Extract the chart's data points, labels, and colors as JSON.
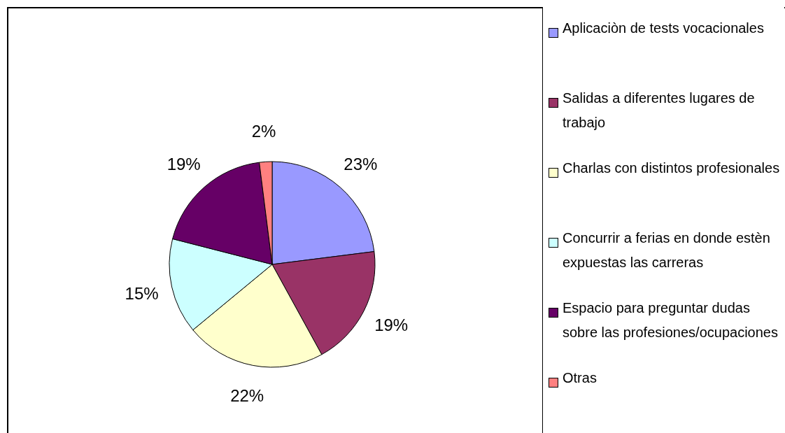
{
  "chart_data": {
    "type": "pie",
    "categories": [
      "Aplicaciòn de tests vocacionales",
      "Salidas a diferentes lugares de trabajo",
      "Charlas con distintos profesionales",
      "Concurrir a ferias en donde estèn expuestas las carreras",
      "Espacio para preguntar dudas sobre las profesiones/ocupaciones",
      "Otras"
    ],
    "values": [
      23,
      19,
      22,
      15,
      19,
      2
    ],
    "colors": [
      "#9999ff",
      "#993366",
      "#ffffcc",
      "#ccffff",
      "#660066",
      "#ff8080"
    ],
    "value_labels": [
      "23%",
      "19%",
      "22%",
      "15%",
      "19%",
      "2%"
    ],
    "legend": "right"
  }
}
